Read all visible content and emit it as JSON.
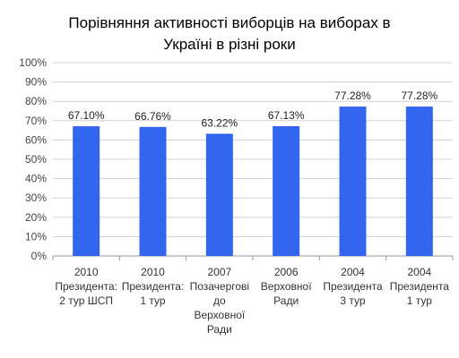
{
  "chart_data": {
    "type": "bar",
    "title_lines": [
      "Порівняння активності виборців на виборах в",
      "Україні в різні роки"
    ],
    "categories": [
      [
        "2010",
        "Президента:",
        "2 тур ШСП"
      ],
      [
        "2010",
        "Президента:",
        "1 тур"
      ],
      [
        "2007",
        "Позачергові",
        "до",
        "Верховної",
        "Ради"
      ],
      [
        "2006",
        "Верховної",
        "Ради"
      ],
      [
        "2004",
        "Президента",
        "3 тур"
      ],
      [
        "2004",
        "Президента",
        "1 тур"
      ]
    ],
    "values": [
      67.1,
      66.76,
      63.22,
      67.13,
      77.28,
      77.28
    ],
    "data_labels": [
      "67.10%",
      "66.76%",
      "63.22%",
      "67.13%",
      "77.28%",
      "77.28%"
    ],
    "y_ticks": [
      "0%",
      "10%",
      "20%",
      "30%",
      "40%",
      "50%",
      "60%",
      "70%",
      "80%",
      "90%",
      "100%"
    ],
    "ylim": [
      0,
      100
    ],
    "grid": true,
    "bar_color": "#3366ee",
    "grid_color": "#d0d0d0"
  }
}
